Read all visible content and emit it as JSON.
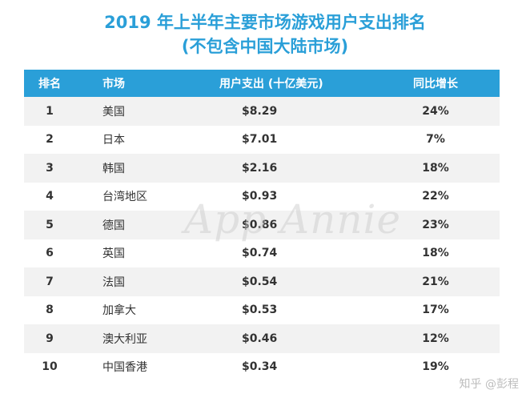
{
  "title_line1": "2019 年上半年主要市场游戏用户支出排名",
  "title_line2": "(不包含中国大陆市场)",
  "headers": {
    "rank": "排名",
    "market": "市场",
    "spend": "用户支出 (十亿美元)",
    "growth": "同比增长"
  },
  "rows": [
    {
      "rank": "1",
      "market": "美国",
      "spend": "$8.29",
      "growth": "24%"
    },
    {
      "rank": "2",
      "market": "日本",
      "spend": "$7.01",
      "growth": "7%"
    },
    {
      "rank": "3",
      "market": "韩国",
      "spend": "$2.16",
      "growth": "18%"
    },
    {
      "rank": "4",
      "market": "台湾地区",
      "spend": "$0.93",
      "growth": "22%"
    },
    {
      "rank": "5",
      "market": "德国",
      "spend": "$0.86",
      "growth": "23%"
    },
    {
      "rank": "6",
      "market": "英国",
      "spend": "$0.74",
      "growth": "18%"
    },
    {
      "rank": "7",
      "market": "法国",
      "spend": "$0.54",
      "growth": "21%"
    },
    {
      "rank": "8",
      "market": "加拿大",
      "spend": "$0.53",
      "growth": "17%"
    },
    {
      "rank": "9",
      "market": "澳大利亚",
      "spend": "$0.46",
      "growth": "12%"
    },
    {
      "rank": "10",
      "market": "中国香港",
      "spend": "$0.34",
      "growth": "19%"
    }
  ],
  "watermark": "App Annie",
  "credit": "知乎 @彭程",
  "colors": {
    "accent": "#2a9fd8",
    "stripe": "#f2f2f2"
  }
}
